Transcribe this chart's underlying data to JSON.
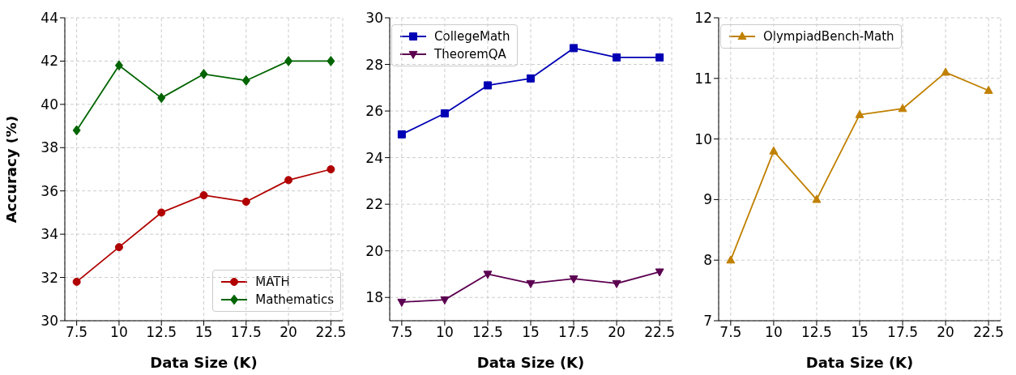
{
  "chart_data": [
    {
      "type": "line",
      "xlabel": "Data Size (K)",
      "ylabel": "Accuracy (%)",
      "x": [
        7.5,
        10,
        12.5,
        15,
        17.5,
        20,
        22.5
      ],
      "xlim": [
        6.8,
        23.2
      ],
      "xticks": [
        7.5,
        10,
        12.5,
        15,
        17.5,
        20,
        22.5
      ],
      "ylim": [
        30,
        44
      ],
      "yticks": [
        30,
        32,
        34,
        36,
        38,
        40,
        42,
        44
      ],
      "grid": true,
      "legend": "bottom right",
      "line_style": "solid",
      "series": [
        {
          "name": "MATH",
          "color": "#b00000",
          "marker": "circle",
          "values": [
            31.8,
            33.4,
            35.0,
            35.8,
            35.5,
            36.5,
            37.0
          ]
        },
        {
          "name": "Mathematics",
          "color": "#006400",
          "marker": "diamond",
          "values": [
            38.8,
            41.8,
            40.3,
            41.4,
            41.1,
            42.0,
            42.0
          ]
        }
      ]
    },
    {
      "type": "line",
      "xlabel": "Data Size (K)",
      "x": [
        7.5,
        10,
        12.5,
        15,
        17.5,
        20,
        22.5
      ],
      "xlim": [
        6.8,
        23.2
      ],
      "xticks": [
        7.5,
        10,
        12.5,
        15,
        17.5,
        20,
        22.5
      ],
      "ylim": [
        17,
        30
      ],
      "yticks": [
        18,
        20,
        22,
        24,
        26,
        28,
        30
      ],
      "grid": true,
      "legend": "top left",
      "line_style": "solid",
      "series": [
        {
          "name": "CollegeMath",
          "color": "#0000b4",
          "marker": "square",
          "values": [
            25.0,
            25.9,
            27.1,
            27.4,
            28.7,
            28.3,
            28.3
          ]
        },
        {
          "name": "TheoremQA",
          "color": "#5c0050",
          "marker": "triangle_down",
          "values": [
            17.8,
            17.9,
            19.0,
            18.6,
            18.8,
            18.6,
            19.1
          ]
        }
      ]
    },
    {
      "type": "line",
      "xlabel": "Data Size (K)",
      "x": [
        7.5,
        10,
        12.5,
        15,
        17.5,
        20,
        22.5
      ],
      "xlim": [
        6.8,
        23.2
      ],
      "xticks": [
        7.5,
        10,
        12.5,
        15,
        17.5,
        20,
        22.5
      ],
      "ylim": [
        7,
        12
      ],
      "yticks": [
        7,
        8,
        9,
        10,
        11,
        12
      ],
      "grid": true,
      "legend": "top left",
      "line_style": "solid",
      "series": [
        {
          "name": "OlympiadBench-Math",
          "color": "#c08000",
          "marker": "triangle",
          "values": [
            8.0,
            9.8,
            9.0,
            10.4,
            10.5,
            11.1,
            10.8
          ]
        }
      ]
    }
  ]
}
